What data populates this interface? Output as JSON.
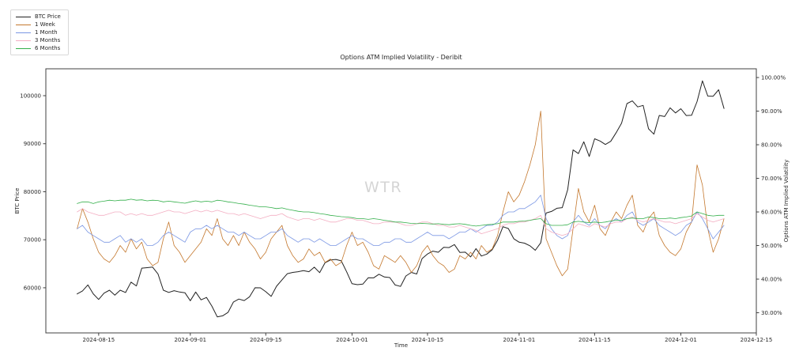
{
  "figure": {
    "title": "Options ATM Implied Volatility - Deribit",
    "watermark": "WTR",
    "background": "#ffffff",
    "spine_color": "#404040",
    "text_color": "#262626",
    "watermark_color": "#d5d5d5"
  },
  "legend": {
    "items": [
      {
        "label": "BTC Price",
        "color": "#222222"
      },
      {
        "label": "1 Week",
        "color": "#c4782e"
      },
      {
        "label": "1 Month",
        "color": "#7b97e4"
      },
      {
        "label": "3 Months",
        "color": "#f3aec2"
      },
      {
        "label": "6 Months",
        "color": "#33af4a"
      }
    ]
  },
  "chart_data": {
    "type": "line",
    "title": "Options ATM Implied Volatility - Deribit",
    "xlabel": "Time",
    "ylabel_left": "BTC Price",
    "ylabel_right": "Options ATM Implied Volatility",
    "legend_position": "upper-left-outside",
    "grid": false,
    "x_start_date": "2024-08-11",
    "x_cadence_days": 1,
    "x_domain_days": [
      -5.8,
      126.0
    ],
    "x_ticks": [
      {
        "label": "2024-08-15",
        "day": 4
      },
      {
        "label": "2024-09-01",
        "day": 21
      },
      {
        "label": "2024-09-15",
        "day": 35
      },
      {
        "label": "2024-10-01",
        "day": 51
      },
      {
        "label": "2024-10-15",
        "day": 65
      },
      {
        "label": "2024-11-01",
        "day": 82
      },
      {
        "label": "2024-11-15",
        "day": 96
      },
      {
        "label": "2024-12-01",
        "day": 112
      },
      {
        "label": "2024-12-15",
        "day": 126
      }
    ],
    "left_axis": {
      "label": "BTC Price",
      "range": [
        50600,
        105600
      ],
      "ticks": [
        {
          "value": 60000,
          "label": "60000"
        },
        {
          "value": 70000,
          "label": "70000"
        },
        {
          "value": 80000,
          "label": "80000"
        },
        {
          "value": 90000,
          "label": "90000"
        },
        {
          "value": 100000,
          "label": "100000"
        }
      ]
    },
    "right_axis": {
      "label": "Options ATM Implied Volatility",
      "range": [
        24.0,
        102.6
      ],
      "ticks": [
        {
          "value": 30,
          "label": "30.00%"
        },
        {
          "value": 40,
          "label": "40.00%"
        },
        {
          "value": 50,
          "label": "50.00%"
        },
        {
          "value": 60,
          "label": "60.00%"
        },
        {
          "value": 70,
          "label": "70.00%"
        },
        {
          "value": 80,
          "label": "80.00%"
        },
        {
          "value": 90,
          "label": "90.00%"
        },
        {
          "value": 100,
          "label": "100.00%"
        }
      ]
    },
    "series": [
      {
        "name": "BTC Price",
        "axis": "left",
        "color": "#222222",
        "width": 1.0,
        "values": [
          58720,
          59350,
          60600,
          58740,
          57560,
          58890,
          59500,
          58450,
          59490,
          59010,
          61170,
          60380,
          64090,
          64180,
          64300,
          62880,
          59500,
          59030,
          59390,
          59120,
          58970,
          57300,
          59110,
          57490,
          57970,
          56180,
          53950,
          54160,
          54870,
          57040,
          57640,
          57340,
          58130,
          60000,
          59990,
          59180,
          58210,
          60310,
          61650,
          62940,
          63200,
          63350,
          63580,
          63340,
          64280,
          63150,
          65200,
          65790,
          65890,
          65600,
          63330,
          60840,
          60650,
          60760,
          62070,
          62060,
          62820,
          62240,
          62130,
          60580,
          60280,
          62450,
          63190,
          62860,
          66080,
          67040,
          67620,
          67400,
          68420,
          68360,
          69000,
          67360,
          67410,
          66430,
          68160,
          66600,
          67010,
          67930,
          69910,
          72720,
          72340,
          70210,
          69480,
          69290,
          68740,
          67810,
          69360,
          75570,
          75900,
          76550,
          76680,
          80430,
          88700,
          87950,
          90400,
          87330,
          91030,
          90560,
          89840,
          90500,
          92310,
          94290,
          98350,
          98920,
          97670,
          97980,
          93100,
          91980,
          95890,
          95650,
          97460,
          96410,
          97280,
          95870,
          95920,
          98770,
          103100,
          99920,
          99880,
          101240,
          97340
        ]
      },
      {
        "name": "1 Week",
        "axis": "right",
        "color": "#c4782e",
        "width": 0.8,
        "values": [
          55,
          61,
          57,
          52,
          48,
          46,
          45,
          47,
          50,
          48,
          52,
          49,
          51,
          46,
          44,
          45,
          52,
          57,
          50,
          48,
          45,
          47,
          49,
          51,
          55,
          53,
          58,
          52,
          50,
          53,
          50,
          54,
          51,
          49,
          46,
          48,
          52,
          54,
          56,
          50,
          47,
          45,
          46,
          49,
          47,
          48,
          45,
          46,
          44,
          45,
          50,
          54,
          50,
          51,
          48,
          44,
          43,
          47,
          46,
          45,
          47,
          45,
          42,
          44,
          48,
          50,
          47,
          45,
          44,
          42,
          43,
          47,
          46,
          48,
          46,
          50,
          48,
          49,
          53,
          60,
          66,
          63,
          65,
          69,
          74,
          80,
          90,
          52,
          48,
          44,
          41,
          43,
          55,
          67,
          60,
          57,
          62,
          55,
          53,
          57,
          60,
          58,
          62,
          65,
          56,
          54,
          58,
          60,
          53,
          50,
          48,
          47,
          49,
          54,
          57,
          74,
          68,
          55,
          48,
          52,
          58
        ]
      },
      {
        "name": "1 Month",
        "axis": "right",
        "color": "#7b97e4",
        "width": 0.8,
        "values": [
          55,
          56,
          54,
          53,
          52,
          51,
          51,
          52,
          53,
          51,
          52,
          51,
          52,
          50,
          50,
          51,
          53,
          54,
          53,
          52,
          51,
          54,
          55,
          55,
          56,
          55,
          56,
          55,
          54,
          54,
          53,
          54,
          53,
          52,
          52,
          53,
          54,
          54,
          55,
          53,
          52,
          51,
          52,
          52,
          51,
          52,
          51,
          50,
          50,
          51,
          52,
          53,
          52,
          52,
          51,
          50,
          50,
          51,
          51,
          52,
          52,
          51,
          51,
          52,
          53,
          54,
          53,
          53,
          53,
          52,
          53,
          54,
          54,
          55,
          54,
          55,
          56,
          56,
          57,
          59,
          60,
          60,
          61,
          61,
          62,
          63,
          65,
          58,
          55,
          53,
          52,
          53,
          57,
          59,
          57,
          56,
          58,
          56,
          55,
          57,
          58,
          57,
          59,
          60,
          57,
          56,
          57,
          58,
          56,
          55,
          54,
          53,
          54,
          56,
          57,
          60,
          58,
          55,
          52,
          54,
          56
        ]
      },
      {
        "name": "3 Months",
        "axis": "right",
        "color": "#f3aec2",
        "width": 0.8,
        "values": [
          60,
          61,
          60,
          59.5,
          59,
          59,
          59.5,
          60,
          60,
          59,
          59.5,
          59,
          59.5,
          59,
          59,
          59.5,
          60,
          60.5,
          60,
          60,
          59.5,
          60,
          60.5,
          60,
          60.5,
          60,
          60.5,
          60,
          59.5,
          59.5,
          59,
          59.5,
          59,
          58.5,
          58,
          58.5,
          59,
          59,
          59.5,
          58.5,
          58,
          57.5,
          58,
          58,
          57.5,
          58,
          57.5,
          57,
          57,
          57.5,
          58,
          58,
          57.5,
          57.5,
          57,
          56.5,
          56.5,
          57,
          57,
          57,
          56.5,
          56,
          56,
          56.5,
          57,
          57,
          56.5,
          56,
          56,
          55.5,
          55.5,
          56,
          55.5,
          55,
          54.5,
          53.5,
          54,
          54.5,
          55,
          56,
          56.5,
          56.5,
          57,
          57,
          57.5,
          58,
          59,
          55,
          54,
          53.5,
          53,
          53.5,
          55,
          56.5,
          56,
          55.5,
          56.5,
          56,
          55.5,
          56.5,
          57,
          57,
          58,
          58.5,
          57.5,
          57,
          57.5,
          58,
          57.5,
          57,
          57,
          56.5,
          57,
          57.5,
          58,
          59.5,
          58.5,
          57.5,
          57,
          57.5,
          58
        ]
      },
      {
        "name": "6 Months",
        "axis": "right",
        "color": "#33af4a",
        "width": 0.8,
        "values": [
          62.5,
          63,
          63,
          62.5,
          63,
          63.2,
          63.5,
          63.3,
          63.5,
          63.5,
          63.8,
          63.5,
          63.6,
          63.3,
          63.5,
          63.4,
          63,
          63.2,
          63,
          62.8,
          62.6,
          63,
          63.3,
          63,
          63.2,
          63,
          63.5,
          63.3,
          63,
          62.8,
          62.5,
          62.3,
          62,
          61.8,
          61.5,
          61.5,
          61.3,
          61,
          61.2,
          60.8,
          60.5,
          60.2,
          60,
          60,
          59.8,
          59.5,
          59.3,
          59,
          58.8,
          58.6,
          58.5,
          58.3,
          58,
          58,
          57.8,
          58,
          57.8,
          57.5,
          57.3,
          57,
          57,
          56.8,
          56.6,
          56.5,
          56.6,
          56.5,
          56.4,
          56.5,
          56.3,
          56.2,
          56.4,
          56.5,
          56.3,
          56,
          55.8,
          56,
          56.2,
          56.3,
          56.5,
          57,
          57,
          57,
          57.2,
          57.3,
          57.5,
          57.8,
          58,
          56.5,
          56,
          56,
          56,
          56.2,
          57,
          57.2,
          57,
          56.8,
          57,
          56.8,
          57,
          57.3,
          57.5,
          57.5,
          58,
          58.2,
          58,
          58,
          58.5,
          58.3,
          58,
          58,
          58.2,
          58,
          58.3,
          58.5,
          58.8,
          60,
          59.5,
          59,
          58.8,
          59,
          59
        ]
      }
    ]
  }
}
